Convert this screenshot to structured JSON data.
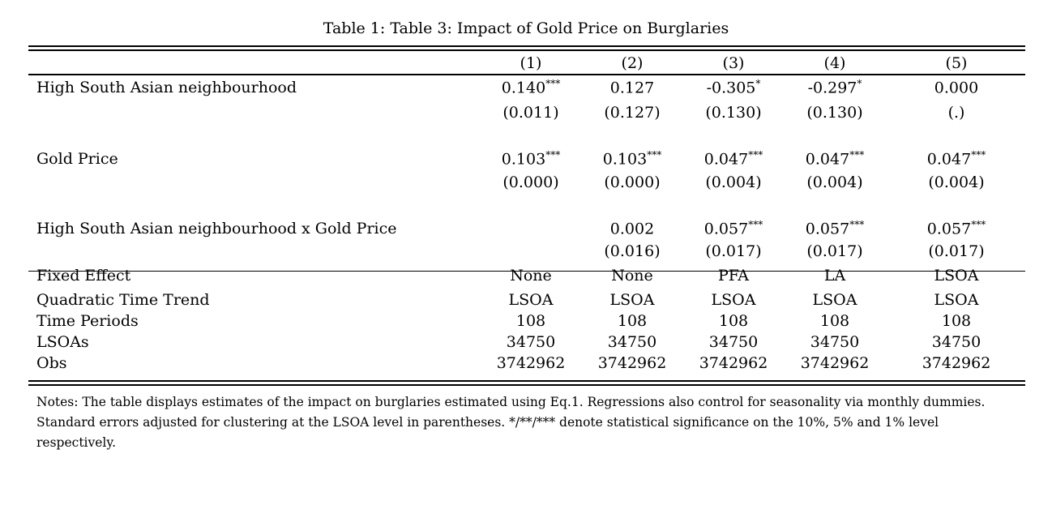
{
  "caption": "Table 1: Table 3: Impact of Gold Price on Burglaries",
  "columns": [
    "(1)",
    "(2)",
    "(3)",
    "(4)",
    "(5)"
  ],
  "coef_rows": [
    {
      "label": "High South Asian neighbourhood",
      "coef": [
        {
          "v": "0.140",
          "s": "***"
        },
        {
          "v": "0.127",
          "s": ""
        },
        {
          "v": "-0.305",
          "s": "*"
        },
        {
          "v": "-0.297",
          "s": "*"
        },
        {
          "v": "0.000",
          "s": ""
        }
      ],
      "se": [
        "(0.011)",
        "(0.127)",
        "(0.130)",
        "(0.130)",
        "(.)"
      ]
    },
    {
      "label": "Gold Price",
      "coef": [
        {
          "v": "0.103",
          "s": "***"
        },
        {
          "v": "0.103",
          "s": "***"
        },
        {
          "v": "0.047",
          "s": "***"
        },
        {
          "v": "0.047",
          "s": "***"
        },
        {
          "v": "0.047",
          "s": "***"
        }
      ],
      "se": [
        "(0.000)",
        "(0.000)",
        "(0.004)",
        "(0.004)",
        "(0.004)"
      ]
    },
    {
      "label": "High South Asian neighbourhood x Gold Price",
      "coef": [
        {
          "v": "",
          "s": ""
        },
        {
          "v": "0.002",
          "s": ""
        },
        {
          "v": "0.057",
          "s": "***"
        },
        {
          "v": "0.057",
          "s": "***"
        },
        {
          "v": "0.057",
          "s": "***"
        }
      ],
      "se": [
        "",
        "(0.016)",
        "(0.017)",
        "(0.017)",
        "(0.017)"
      ]
    }
  ],
  "stat_rows": [
    {
      "label": "Fixed Effect",
      "values": [
        "None",
        "None",
        "PFA",
        "LA",
        "LSOA"
      ]
    },
    {
      "label": "Quadratic Time Trend",
      "values": [
        "LSOA",
        "LSOA",
        "LSOA",
        "LSOA",
        "LSOA"
      ]
    },
    {
      "label": "Time Periods",
      "values": [
        "108",
        "108",
        "108",
        "108",
        "108"
      ]
    },
    {
      "label": "LSOAs",
      "values": [
        "34750",
        "34750",
        "34750",
        "34750",
        "34750"
      ]
    },
    {
      "label": "Obs",
      "values": [
        "3742962",
        "3742962",
        "3742962",
        "3742962",
        "3742962"
      ]
    }
  ],
  "notes": "Notes: The table displays estimates of the impact on burglaries estimated using Eq.1. Regressions also control for seasonality via monthly dummies. Standard errors adjusted for clustering at the LSOA level in parentheses. */**/*** denote statistical significance on the 10%, 5% and 1% level respectively."
}
